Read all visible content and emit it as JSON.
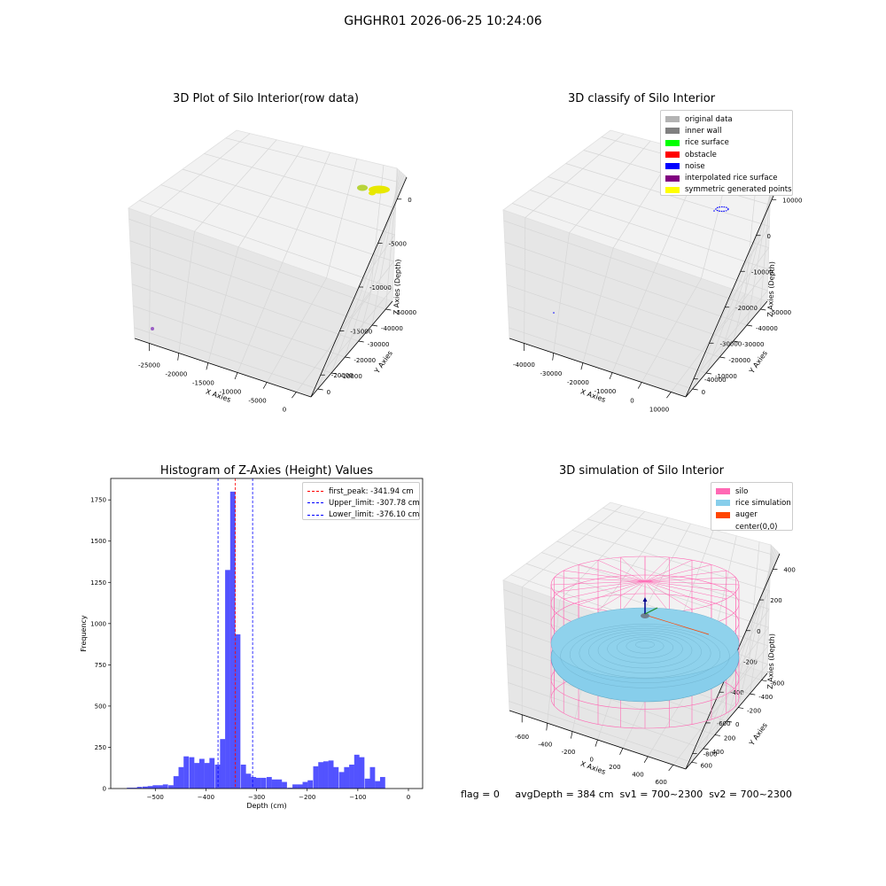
{
  "suptitle": "GHGHR01 2026-06-25 10:24:06",
  "footer_text": "flag = 0     avgDepth = 384 cm  sv1 = 700~2300  sv2 = 700~2300",
  "chart_data": [
    {
      "type": "scatter3d",
      "title": "3D Plot of Silo Interior(row data)",
      "xlabel": "X Axies",
      "ylabel": "Y Axies",
      "zlabel": "Z Axies (Depth)",
      "x_ticks": [
        "-25000",
        "-20000",
        "-15000",
        "-10000",
        "-5000",
        "0"
      ],
      "y_ticks": [
        "0",
        "-10000",
        "-20000",
        "-30000",
        "-40000",
        "-50000"
      ],
      "z_ticks": [
        "0",
        "-5000",
        "-10000",
        "-15000",
        "-20000"
      ],
      "point_colors": [
        "#e8e800",
        "#b8d43a",
        "#9a5ec4"
      ]
    },
    {
      "type": "scatter3d",
      "title": "3D classify of Silo Interior",
      "xlabel": "X Axies",
      "ylabel": "Y Axies",
      "zlabel": "Z Axies (Depth)",
      "x_ticks": [
        "-40000",
        "-30000",
        "-20000",
        "-10000",
        "0",
        "10000"
      ],
      "y_ticks": [
        "0",
        "-10000",
        "-20000",
        "-30000",
        "-40000",
        "-50000"
      ],
      "z_ticks": [
        "10000",
        "0",
        "-10000",
        "-20000",
        "-30000",
        "-40000"
      ],
      "legend": [
        {
          "label": "original data",
          "color": "#b3b3b3"
        },
        {
          "label": "inner wall",
          "color": "#808080"
        },
        {
          "label": "rice surface",
          "color": "#00ff00"
        },
        {
          "label": "obstacle",
          "color": "#ff0000"
        },
        {
          "label": "noise",
          "color": "#0000ff"
        },
        {
          "label": "interpolated rice surface",
          "color": "#800080"
        },
        {
          "label": "symmetric generated points",
          "color": "#ffff00"
        }
      ]
    },
    {
      "type": "bar",
      "title": "Histogram of Z-Axies (Height) Values",
      "xlabel": "Depth (cm)",
      "ylabel": "Frequency",
      "xlim": [
        -588,
        28
      ],
      "ylim": [
        0,
        1880
      ],
      "x_ticks": [
        -500,
        -400,
        -300,
        -200,
        -100,
        0
      ],
      "y_ticks": [
        0,
        250,
        500,
        750,
        1000,
        1250,
        1500,
        1750
      ],
      "bin_width": 10.2,
      "bins": [
        {
          "x": -551,
          "v": 5
        },
        {
          "x": -541,
          "v": 5
        },
        {
          "x": -531,
          "v": 10
        },
        {
          "x": -520,
          "v": 12
        },
        {
          "x": -510,
          "v": 15
        },
        {
          "x": -500,
          "v": 20
        },
        {
          "x": -490,
          "v": 20
        },
        {
          "x": -480,
          "v": 25
        },
        {
          "x": -469,
          "v": 20
        },
        {
          "x": -459,
          "v": 75
        },
        {
          "x": -449,
          "v": 130
        },
        {
          "x": -439,
          "v": 195
        },
        {
          "x": -428,
          "v": 190
        },
        {
          "x": -418,
          "v": 155
        },
        {
          "x": -408,
          "v": 180
        },
        {
          "x": -398,
          "v": 155
        },
        {
          "x": -388,
          "v": 185
        },
        {
          "x": -377,
          "v": 145
        },
        {
          "x": -367,
          "v": 300
        },
        {
          "x": -357,
          "v": 1325
        },
        {
          "x": -347,
          "v": 1800
        },
        {
          "x": -337,
          "v": 935
        },
        {
          "x": -326,
          "v": 145
        },
        {
          "x": -316,
          "v": 90
        },
        {
          "x": -306,
          "v": 70
        },
        {
          "x": -296,
          "v": 65
        },
        {
          "x": -286,
          "v": 65
        },
        {
          "x": -275,
          "v": 70
        },
        {
          "x": -265,
          "v": 55
        },
        {
          "x": -255,
          "v": 55
        },
        {
          "x": -245,
          "v": 40
        },
        {
          "x": -234,
          "v": 5
        },
        {
          "x": -224,
          "v": 25
        },
        {
          "x": -214,
          "v": 25
        },
        {
          "x": -204,
          "v": 40
        },
        {
          "x": -194,
          "v": 50
        },
        {
          "x": -183,
          "v": 135
        },
        {
          "x": -173,
          "v": 160
        },
        {
          "x": -163,
          "v": 165
        },
        {
          "x": -153,
          "v": 170
        },
        {
          "x": -143,
          "v": 130
        },
        {
          "x": -132,
          "v": 100
        },
        {
          "x": -122,
          "v": 130
        },
        {
          "x": -112,
          "v": 145
        },
        {
          "x": -102,
          "v": 205
        },
        {
          "x": -92,
          "v": 190
        },
        {
          "x": -81,
          "v": 60
        },
        {
          "x": -71,
          "v": 130
        },
        {
          "x": -61,
          "v": 45
        },
        {
          "x": -51,
          "v": 70
        }
      ],
      "bar_color": "#4040ff",
      "vlines": [
        {
          "x": -341.94,
          "color": "#ff0000"
        },
        {
          "x": -307.78,
          "color": "#0000ff"
        },
        {
          "x": -376.1,
          "color": "#0000ff"
        }
      ],
      "legend": [
        {
          "label": "first_peak: -341.94 cm",
          "color": "#ff0000"
        },
        {
          "label": "Upper_limit: -307.78 cm",
          "color": "#0000ff"
        },
        {
          "label": "Lower_limit: -376.10 cm",
          "color": "#0000ff"
        }
      ]
    },
    {
      "type": "surface3d",
      "title": "3D simulation of Silo Interior",
      "xlabel": "X Axies",
      "ylabel": "Y Axies",
      "zlabel": "Z Axies (Depth)",
      "x_ticks": [
        "-600",
        "-400",
        "-200",
        "0",
        "200",
        "400",
        "600"
      ],
      "y_ticks": [
        "600",
        "400",
        "200",
        "0",
        "-200",
        "-400",
        "-600"
      ],
      "z_ticks": [
        "400",
        "200",
        "0",
        "-200",
        "-400",
        "-600",
        "-800"
      ],
      "legend": [
        {
          "label": "silo",
          "color": "#ff69b4"
        },
        {
          "label": "rice simulation",
          "color": "#87ceeb"
        },
        {
          "label": "auger",
          "color": "#ff4500"
        },
        {
          "label": "center(0,0)",
          "color": "#ffffff"
        }
      ]
    }
  ]
}
